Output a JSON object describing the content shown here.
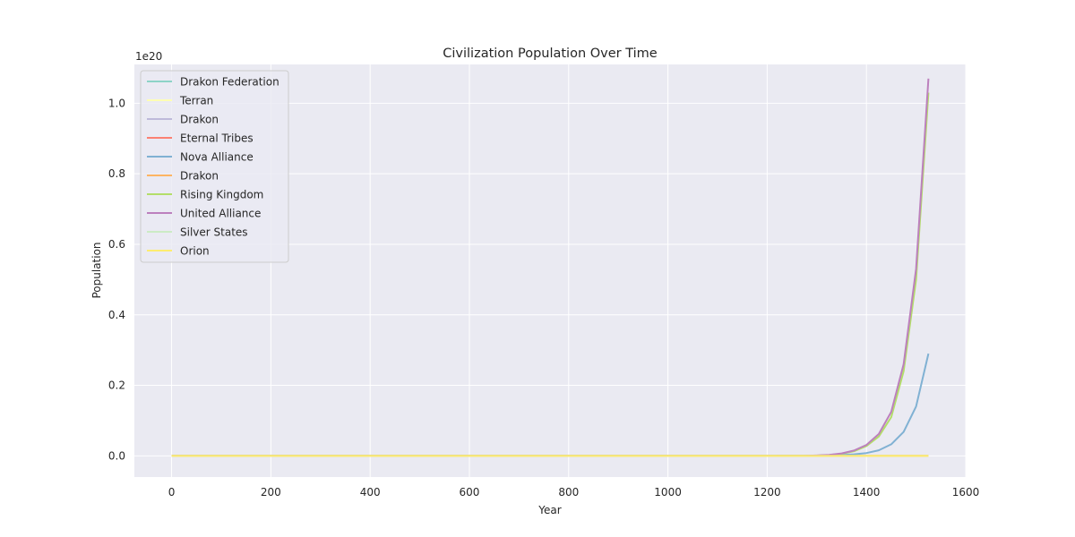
{
  "chart_data": {
    "type": "line",
    "title": "Civilization Population Over Time",
    "xlabel": "Year",
    "ylabel": "Population",
    "y_offset_text": "1e20",
    "y_scale_factor": 1e+20,
    "xlim": [
      -75,
      1600
    ],
    "ylim": [
      -0.06,
      1.11
    ],
    "xticks": [
      0,
      200,
      400,
      600,
      800,
      1000,
      1200,
      1400,
      1600
    ],
    "yticks": [
      0.0,
      0.2,
      0.4,
      0.6,
      0.8,
      1.0
    ],
    "xtick_labels": [
      "0",
      "200",
      "400",
      "600",
      "800",
      "1000",
      "1200",
      "1400",
      "1600"
    ],
    "ytick_labels": [
      "0.0",
      "0.2",
      "0.4",
      "0.6",
      "0.8",
      "1.0"
    ],
    "grid": true,
    "legend_position": "top-left",
    "background": "#eaeaf2",
    "x": [
      0,
      1200,
      1250,
      1275,
      1300,
      1325,
      1350,
      1375,
      1400,
      1425,
      1450,
      1475,
      1500,
      1525
    ],
    "series": [
      {
        "name": "Drakon Federation",
        "color": "#8dd3c7",
        "values": [
          0,
          0,
          0,
          0,
          0,
          0,
          0,
          0,
          0,
          0,
          0,
          0,
          0,
          0
        ]
      },
      {
        "name": "Terran",
        "color": "#ffffb3",
        "values": [
          0,
          0,
          0,
          0,
          0,
          0,
          0,
          0,
          0,
          0,
          0,
          0,
          0,
          0
        ]
      },
      {
        "name": "Drakon",
        "color": "#bebada",
        "values": [
          0,
          0,
          0,
          0,
          0,
          0,
          0,
          0,
          0,
          0,
          0,
          0,
          0,
          0
        ]
      },
      {
        "name": "Eternal Tribes",
        "color": "#fb8072",
        "values": [
          0,
          0,
          0,
          0,
          0,
          0,
          0,
          0,
          0,
          0,
          0,
          0,
          0,
          0
        ]
      },
      {
        "name": "Nova Alliance",
        "color": "#80b1d3",
        "values": [
          0,
          0,
          0.0001,
          0.0003,
          0.0006,
          0.0012,
          0.0025,
          0.0045,
          0.008,
          0.016,
          0.033,
          0.068,
          0.14,
          0.29
        ]
      },
      {
        "name": "Drakon",
        "color": "#fdb462",
        "values": [
          0,
          0,
          0,
          0,
          0,
          0,
          0,
          0,
          0,
          0,
          0,
          0,
          0,
          0
        ]
      },
      {
        "name": "Rising Kingdom",
        "color": "#b3de69",
        "values": [
          0,
          0,
          0.0002,
          0.0005,
          0.001,
          0.0025,
          0.006,
          0.013,
          0.028,
          0.055,
          0.11,
          0.24,
          0.5,
          1.03
        ]
      },
      {
        "name": "United Alliance",
        "color": "#bc80bd",
        "values": [
          0,
          0,
          0.0002,
          0.0005,
          0.0012,
          0.0028,
          0.007,
          0.015,
          0.031,
          0.062,
          0.125,
          0.26,
          0.53,
          1.07
        ]
      },
      {
        "name": "Silver States",
        "color": "#ccebc5",
        "values": [
          0,
          0,
          0,
          0,
          0,
          0,
          0,
          0,
          0,
          0,
          0,
          0,
          0,
          0
        ]
      },
      {
        "name": "Orion",
        "color": "#ffed6f",
        "values": [
          0,
          0,
          0,
          0,
          0,
          0,
          0,
          0,
          0,
          0,
          0,
          0,
          0,
          0
        ]
      }
    ]
  }
}
